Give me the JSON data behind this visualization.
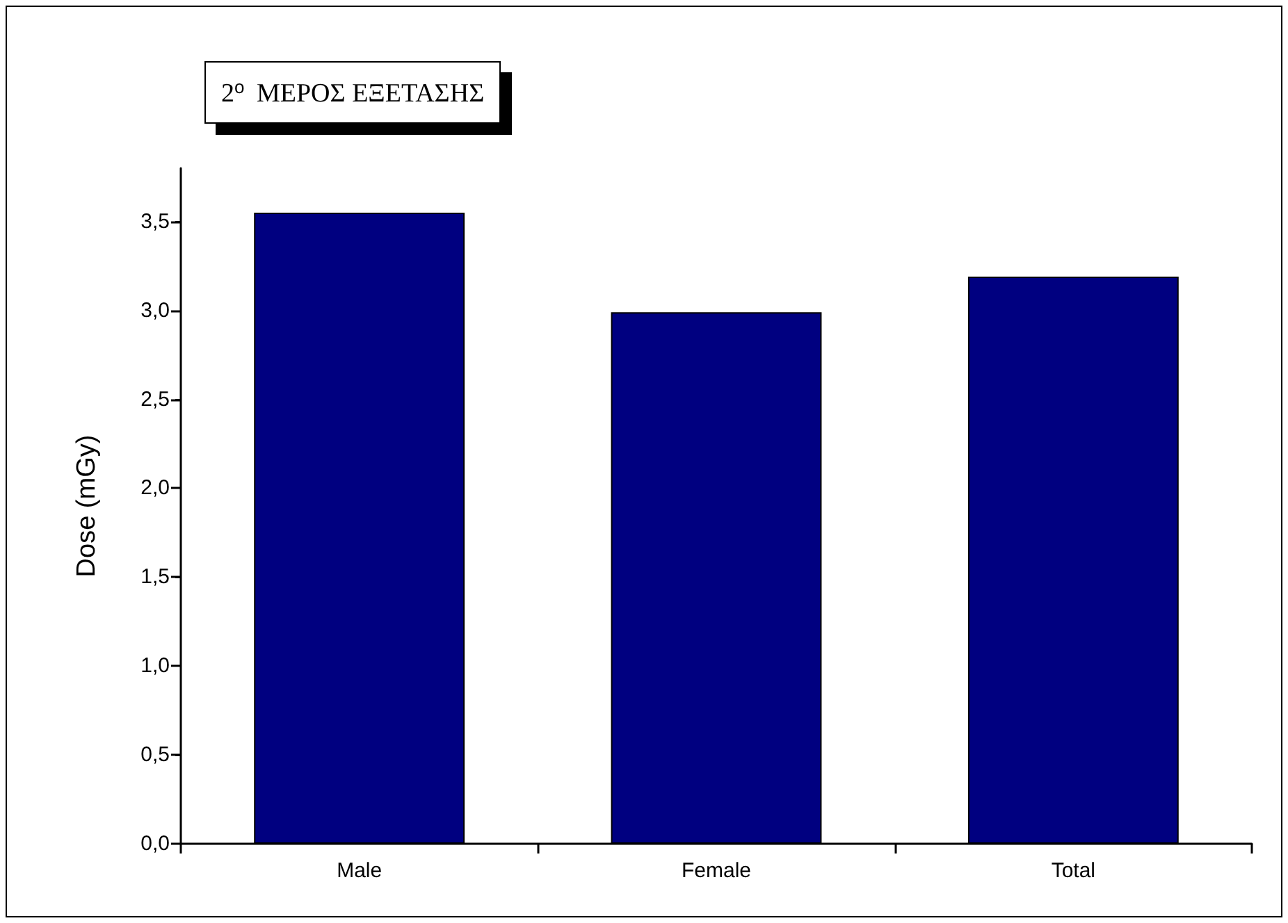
{
  "chart_data": {
    "type": "bar",
    "title": "2$^{o}$ ΜΕΡΟΣ ΕΞΕΤΑΣΗΣ",
    "ylabel": "Dose (mGy)",
    "categories": [
      "Male",
      "Female",
      "Total"
    ],
    "values": [
      3.55,
      2.99,
      3.19
    ],
    "color": "#000080",
    "ylim": [
      0,
      3.8
    ],
    "yticks": [
      {
        "value": 0,
        "label": "0,0"
      },
      {
        "value": 0.5,
        "label": "0,5"
      },
      {
        "value": 1,
        "label": "1,0"
      },
      {
        "value": 1.5,
        "label": "1,5"
      },
      {
        "value": 2,
        "label": "2,0"
      },
      {
        "value": 2.5,
        "label": "2,5"
      },
      {
        "value": 3,
        "label": "3,0"
      },
      {
        "value": 3.5,
        "label": "3,5"
      }
    ],
    "grid": false
  }
}
